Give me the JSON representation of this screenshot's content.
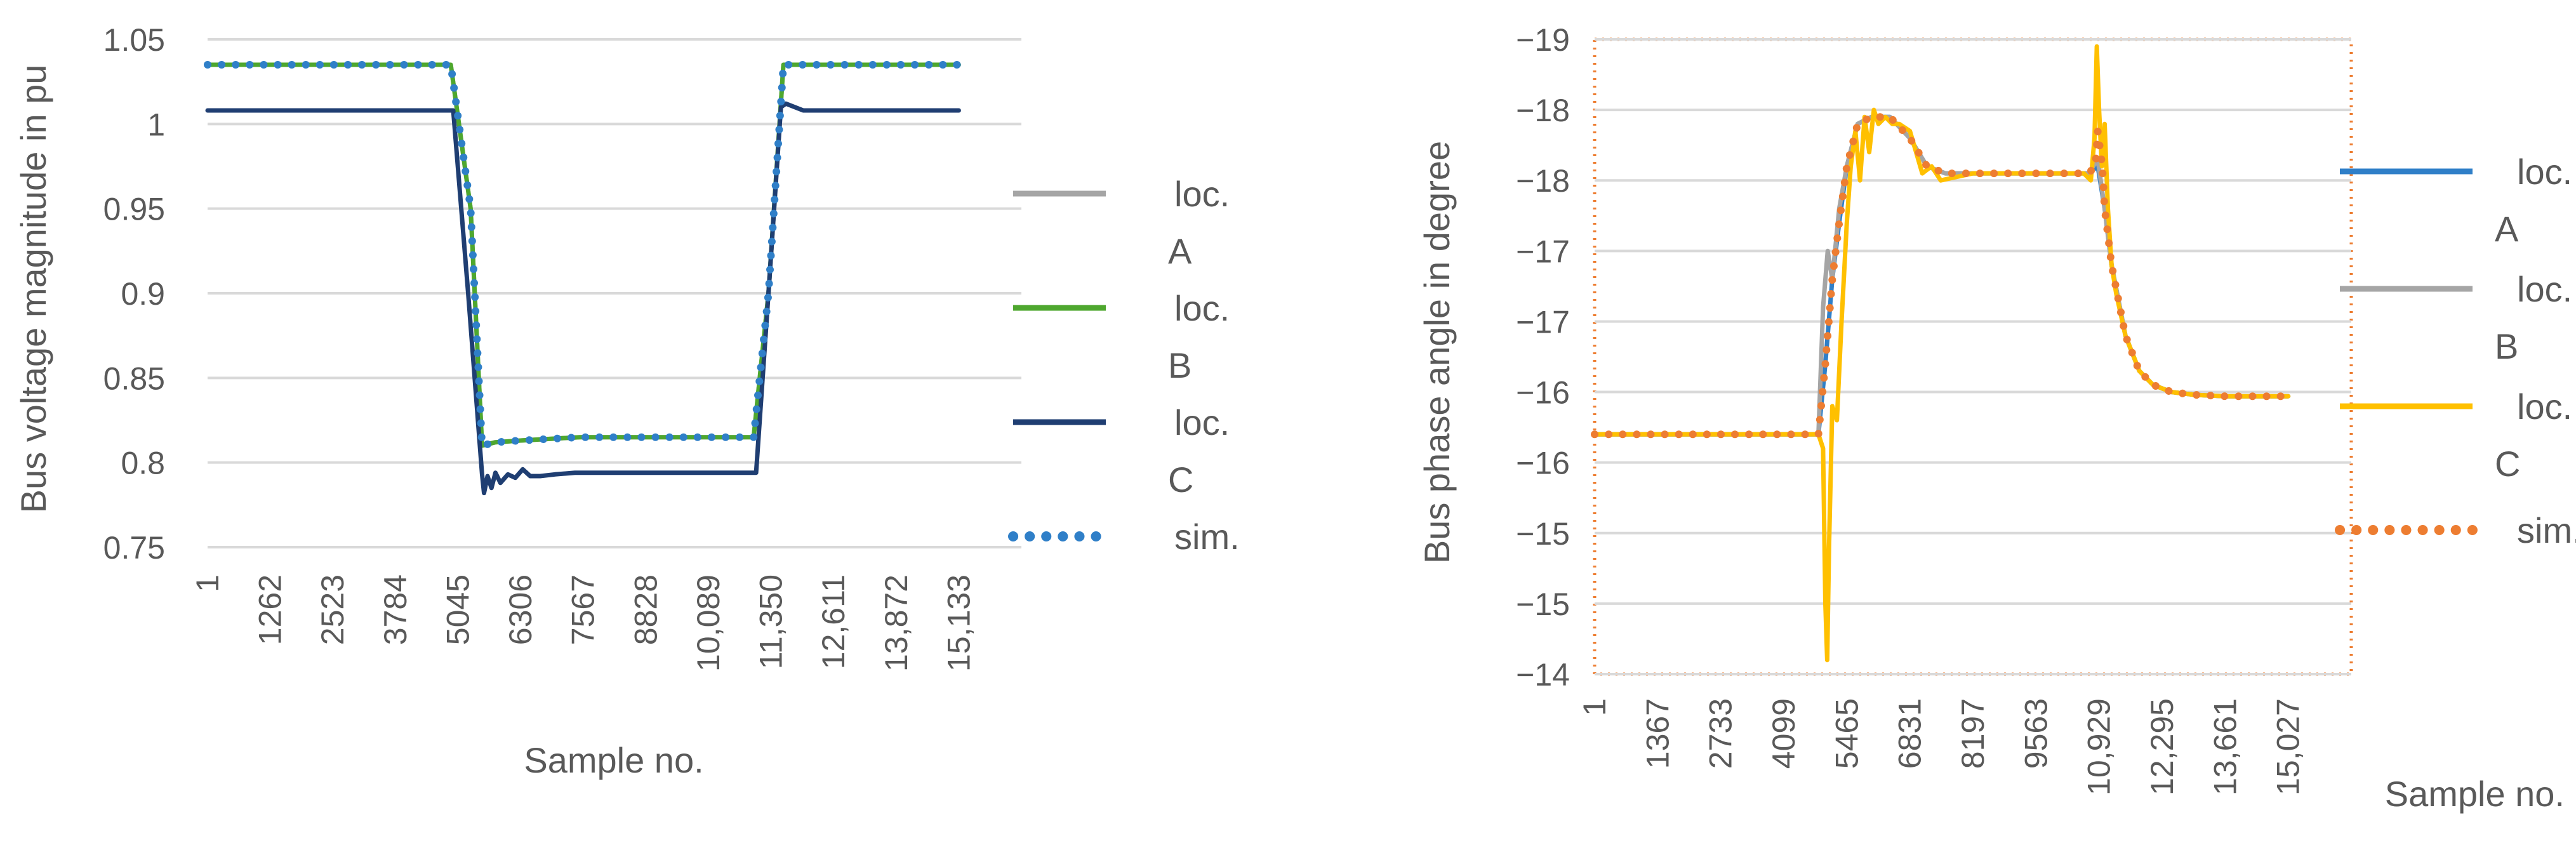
{
  "chart_data": [
    {
      "type": "line",
      "title": "",
      "xlabel": "Sample no.",
      "ylabel": "Bus voltage magnitude in pu",
      "x_tick_labels": [
        "1",
        "1262",
        "2523",
        "3784",
        "5045",
        "6306",
        "7567",
        "8828",
        "10,089",
        "11,350",
        "12,611",
        "13,872",
        "15,133"
      ],
      "x_ticks": [
        1,
        1262,
        2523,
        3784,
        5045,
        6306,
        7567,
        8828,
        10089,
        11350,
        12611,
        13872,
        15133
      ],
      "xlim": [
        1,
        16394
      ],
      "y_tick_labels": [
        "0.75",
        "0.8",
        "0.85",
        "0.9",
        "0.95",
        "1",
        "1.05"
      ],
      "y_ticks": [
        0.75,
        0.8,
        0.85,
        0.9,
        0.95,
        1.0,
        1.05
      ],
      "ylim": [
        0.75,
        1.05
      ],
      "grid": true,
      "legend_position": "right",
      "colors": {
        "grid": "#d9d9d9",
        "text": "#595959"
      },
      "series": [
        {
          "name": "loc. A",
          "legend_lines": [
            "loc.",
            "A"
          ],
          "color": "#a5a5a5",
          "style": "solid",
          "x": [
            1,
            4900,
            5300,
            5530,
            5800,
            6300,
            7500,
            11000,
            11300,
            11600,
            15133
          ],
          "y": [
            1.035,
            1.035,
            0.95,
            0.81,
            0.812,
            0.813,
            0.815,
            0.815,
            0.9,
            1.035,
            1.035
          ]
        },
        {
          "name": "loc. B",
          "legend_lines": [
            "loc.",
            "B"
          ],
          "color": "#4ea72e",
          "style": "solid",
          "x": [
            1,
            4900,
            5300,
            5530,
            5800,
            6300,
            7500,
            11000,
            11300,
            11600,
            15133
          ],
          "y": [
            1.035,
            1.035,
            0.95,
            0.81,
            0.812,
            0.813,
            0.815,
            0.815,
            0.9,
            1.035,
            1.035
          ]
        },
        {
          "name": "loc. C",
          "legend_lines": [
            "loc.",
            "C"
          ],
          "color": "#1f3e72",
          "style": "solid",
          "x": [
            1,
            4950,
            5250,
            5530,
            5570,
            5640,
            5720,
            5800,
            5900,
            6050,
            6200,
            6350,
            6500,
            6700,
            7000,
            7400,
            8500,
            9500,
            11050,
            11300,
            11550,
            11650,
            12000,
            15133
          ],
          "y": [
            1.008,
            1.008,
            0.9,
            0.793,
            0.782,
            0.792,
            0.785,
            0.794,
            0.788,
            0.793,
            0.791,
            0.796,
            0.792,
            0.792,
            0.793,
            0.794,
            0.794,
            0.794,
            0.794,
            0.9,
            1.01,
            1.012,
            1.008,
            1.008
          ]
        },
        {
          "name": "sim.",
          "legend_lines": [
            "sim."
          ],
          "color": "#2f7fc8",
          "style": "dotted",
          "x": [
            1,
            4900,
            5300,
            5530,
            5800,
            6300,
            7500,
            11000,
            11300,
            11600,
            15133
          ],
          "y": [
            1.035,
            1.035,
            0.95,
            0.81,
            0.812,
            0.813,
            0.815,
            0.815,
            0.9,
            1.035,
            1.035
          ]
        }
      ]
    },
    {
      "type": "line",
      "title": "",
      "xlabel": "Sample no.",
      "ylabel": "Bus phase angle in degree",
      "x_tick_labels": [
        "1",
        "1367",
        "2733",
        "4099",
        "5465",
        "6831",
        "8197",
        "9563",
        "10,929",
        "12,295",
        "13,661",
        "15,027"
      ],
      "x_ticks": [
        1,
        1367,
        2733,
        4099,
        5465,
        6831,
        8197,
        9563,
        10929,
        12295,
        13661,
        15027
      ],
      "xlim": [
        1,
        16393
      ],
      "y_tick_labels": [
        "−14",
        "−15",
        "−15",
        "−16",
        "−16",
        "−17",
        "−17",
        "−18",
        "−18",
        "−19"
      ],
      "y_ticks": [
        -14.0,
        -14.5,
        -15.0,
        -15.5,
        -16.0,
        -16.5,
        -17.0,
        -17.5,
        -18.0,
        -18.5
      ],
      "ylim": [
        -14.0,
        -18.5
      ],
      "grid": true,
      "legend_position": "right",
      "border": {
        "color": "#ed7d31",
        "style": "dotted"
      },
      "colors": {
        "grid": "#d9d9d9",
        "text": "#595959"
      },
      "series": [
        {
          "name": "loc. A",
          "legend_lines": [
            "loc.",
            "A"
          ],
          "color": "#2f7fc8",
          "style": "solid",
          "x": [
            1,
            4850,
            5000,
            5150,
            5300,
            5465,
            5700,
            6000,
            6400,
            6831,
            7200,
            7600,
            8197,
            9563,
            10700,
            10900,
            11050,
            11200,
            11500,
            11800,
            12100,
            12500,
            13000,
            13661,
            15027
          ],
          "y": [
            -15.7,
            -15.7,
            -16.2,
            -16.8,
            -17.2,
            -17.6,
            -17.9,
            -17.95,
            -17.95,
            -17.8,
            -17.6,
            -17.55,
            -17.55,
            -17.55,
            -17.55,
            -17.6,
            -17.3,
            -16.9,
            -16.4,
            -16.15,
            -16.05,
            -16.0,
            -15.98,
            -15.97,
            -15.97
          ]
        },
        {
          "name": "loc. B",
          "legend_lines": [
            "loc.",
            "B"
          ],
          "color": "#a5a5a5",
          "style": "solid",
          "x": [
            1,
            4850,
            4950,
            5050,
            5150,
            5300,
            5465,
            5700,
            6000,
            6400,
            6831,
            7200,
            7600,
            8197,
            9563,
            10700,
            10900,
            11050,
            11200,
            11500,
            11800,
            12100,
            12500,
            13000,
            13661,
            15027
          ],
          "y": [
            -15.7,
            -15.7,
            -16.6,
            -17.0,
            -16.8,
            -17.3,
            -17.6,
            -17.9,
            -17.95,
            -17.95,
            -17.8,
            -17.6,
            -17.55,
            -17.55,
            -17.55,
            -17.55,
            -17.65,
            -17.3,
            -16.9,
            -16.4,
            -16.15,
            -16.05,
            -16.0,
            -15.98,
            -15.97,
            -15.97
          ]
        },
        {
          "name": "loc. C",
          "legend_lines": [
            "loc.",
            "C"
          ],
          "color": "#ffc000",
          "style": "solid",
          "x": [
            1,
            4850,
            4950,
            5000,
            5040,
            5080,
            5150,
            5250,
            5350,
            5465,
            5550,
            5650,
            5750,
            5850,
            5950,
            6050,
            6150,
            6300,
            6450,
            6600,
            6831,
            7100,
            7300,
            7500,
            8197,
            9563,
            10600,
            10750,
            10830,
            10880,
            10930,
            10990,
            11050,
            11120,
            11200,
            11300,
            11500,
            11800,
            12100,
            12500,
            13000,
            13661,
            15027
          ],
          "y": [
            -15.7,
            -15.7,
            -15.6,
            -14.5,
            -14.1,
            -14.9,
            -15.9,
            -15.8,
            -16.5,
            -17.2,
            -17.6,
            -17.85,
            -17.5,
            -17.95,
            -17.7,
            -18.0,
            -17.9,
            -17.95,
            -17.9,
            -17.9,
            -17.85,
            -17.55,
            -17.6,
            -17.5,
            -17.55,
            -17.55,
            -17.55,
            -17.5,
            -17.8,
            -18.45,
            -18.0,
            -17.6,
            -17.9,
            -17.3,
            -16.9,
            -16.7,
            -16.4,
            -16.15,
            -16.05,
            -16.0,
            -15.98,
            -15.97,
            -15.97
          ]
        },
        {
          "name": "sim.",
          "legend_lines": [
            "sim."
          ],
          "color": "#ed7d31",
          "style": "dotted",
          "x": [
            1,
            4850,
            5000,
            5150,
            5300,
            5465,
            5700,
            6000,
            6400,
            6831,
            7200,
            7600,
            8197,
            9563,
            10700,
            10850,
            10900,
            11000,
            11050,
            11200,
            11500,
            11800,
            12100,
            12500,
            13000,
            13661,
            15027
          ],
          "y": [
            -15.7,
            -15.7,
            -16.2,
            -16.8,
            -17.2,
            -17.6,
            -17.9,
            -17.95,
            -17.95,
            -17.8,
            -17.6,
            -17.55,
            -17.55,
            -17.55,
            -17.55,
            -17.6,
            -17.85,
            -17.6,
            -17.3,
            -16.9,
            -16.4,
            -16.15,
            -16.05,
            -16.0,
            -15.98,
            -15.97,
            -15.97
          ]
        }
      ]
    }
  ]
}
